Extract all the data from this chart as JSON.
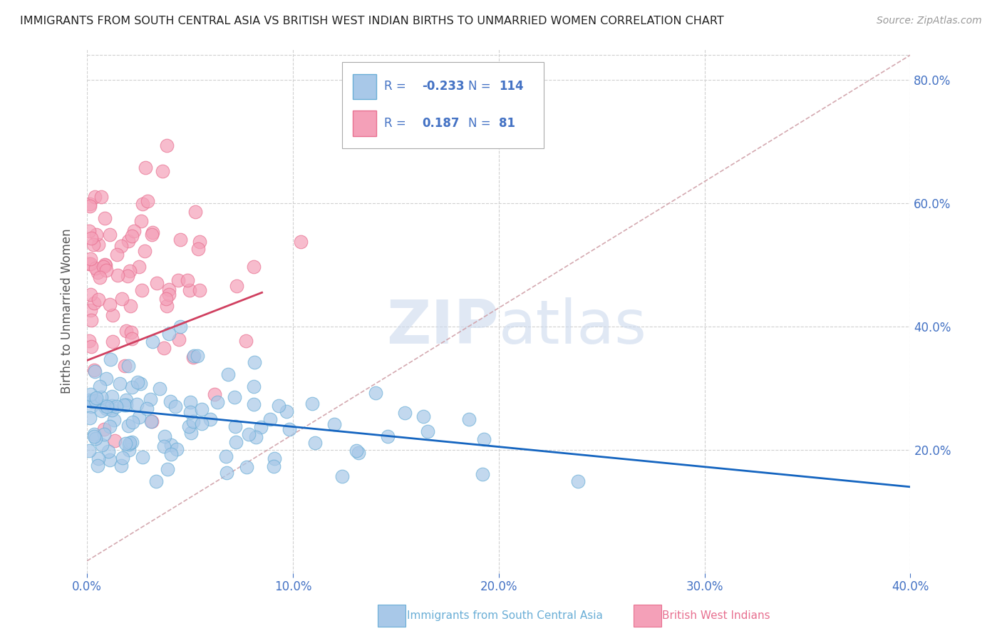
{
  "title": "IMMIGRANTS FROM SOUTH CENTRAL ASIA VS BRITISH WEST INDIAN BIRTHS TO UNMARRIED WOMEN CORRELATION CHART",
  "source": "Source: ZipAtlas.com",
  "ylabel": "Births to Unmarried Women",
  "xlim": [
    0.0,
    0.4
  ],
  "ylim": [
    0.0,
    0.85
  ],
  "xtick_labels": [
    "0.0%",
    "10.0%",
    "20.0%",
    "30.0%",
    "40.0%"
  ],
  "xtick_values": [
    0.0,
    0.1,
    0.2,
    0.3,
    0.4
  ],
  "ytick_labels": [
    "20.0%",
    "40.0%",
    "60.0%",
    "80.0%"
  ],
  "ytick_values": [
    0.2,
    0.4,
    0.6,
    0.8
  ],
  "blue_trend_x": [
    0.0,
    0.4
  ],
  "blue_trend_y": [
    0.27,
    0.14
  ],
  "pink_trend_x": [
    0.0,
    0.085
  ],
  "pink_trend_y": [
    0.345,
    0.455
  ],
  "dashed_trend_x": [
    0.0,
    0.4
  ],
  "dashed_trend_y": [
    0.02,
    0.84
  ],
  "watermark_zip": "ZIP",
  "watermark_atlas": "atlas",
  "bg_color": "#ffffff",
  "grid_color": "#d0d0d0",
  "blue_dot_color": "#a8c8e8",
  "blue_dot_edge": "#6aaed6",
  "pink_dot_color": "#f4a0b8",
  "pink_dot_edge": "#e87090",
  "blue_trend_color": "#1565c0",
  "pink_trend_color": "#d04060",
  "dashed_color": "#d0a0a8",
  "title_color": "#222222",
  "axis_label_color": "#555555",
  "tick_label_color": "#4472c4",
  "legend_R1": "-0.233",
  "legend_N1": "114",
  "legend_R2": "0.187",
  "legend_N2": "81",
  "bottom_label1": "Immigrants from South Central Asia",
  "bottom_label2": "British West Indians"
}
